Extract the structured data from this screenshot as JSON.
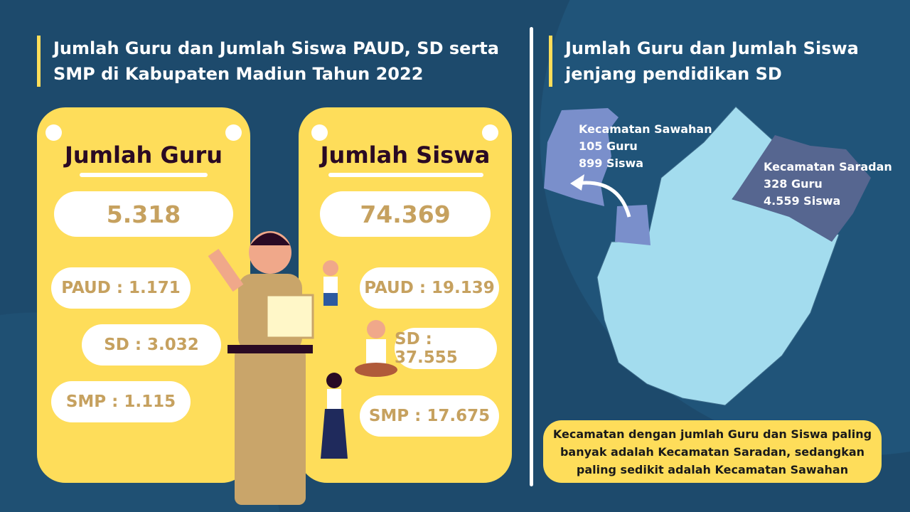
{
  "left": {
    "title": "Jumlah Guru dan Jumlah Siswa PAUD, SD serta SMP di Kabupaten Madiun Tahun 2022",
    "guru": {
      "heading": "Jumlah Guru",
      "total": "5.318",
      "paud": "PAUD : 1.171",
      "sd": "SD : 3.032",
      "smp": "SMP : 1.115"
    },
    "siswa": {
      "heading": "Jumlah Siswa",
      "total": "74.369",
      "paud": "PAUD : 19.139",
      "sd": "SD : 37.555",
      "smp": "SMP : 17.675"
    }
  },
  "right": {
    "title": "Jumlah Guru dan Jumlah Siswa jenjang pendidikan SD",
    "sawahan": {
      "name": "Kecamatan Sawahan",
      "guru": "105 Guru",
      "siswa": "899 Siswa"
    },
    "saradan": {
      "name": "Kecamatan Saradan",
      "guru": "328 Guru",
      "siswa": "4.559 Siswa"
    },
    "note": "Kecamatan dengan jumlah Guru dan Siswa paling banyak adalah Kecamatan Saradan, sedangkan paling sedikit adalah Kecamatan Sawahan"
  },
  "colors": {
    "background": "#1d4a6c",
    "card": "#fedd5a",
    "number": "#c6a15f",
    "map": "#a3dcee",
    "sawahan": "#7a8fcb",
    "saradan": "#566690"
  }
}
